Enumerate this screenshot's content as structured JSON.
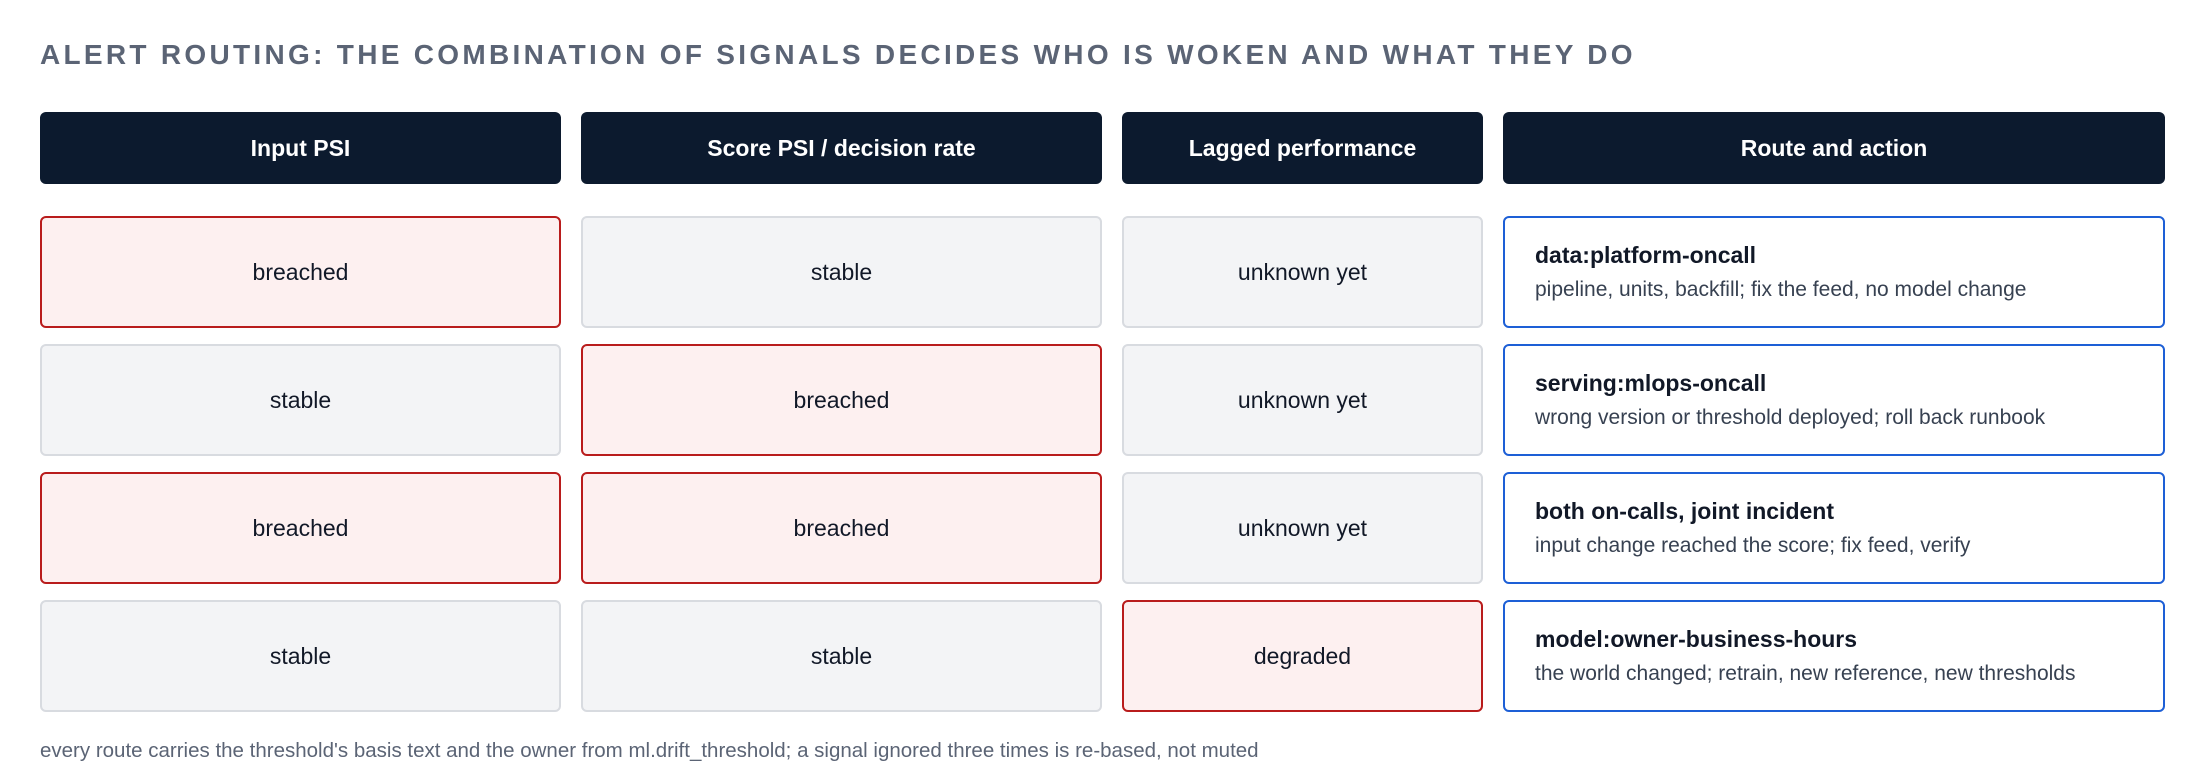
{
  "title": "ALERT ROUTING: THE COMBINATION OF SIGNALS DECIDES WHO IS WOKEN AND WHAT THEY DO",
  "columns": [
    "Input PSI",
    "Score PSI / decision rate",
    "Lagged performance",
    "Route and action"
  ],
  "rows": [
    {
      "input_psi": {
        "text": "breached",
        "state": "alert"
      },
      "score_psi": {
        "text": "stable",
        "state": "neutral"
      },
      "lagged": {
        "text": "unknown yet",
        "state": "neutral"
      },
      "route": {
        "title": "data:platform-oncall",
        "desc": "pipeline, units, backfill; fix the feed, no model change"
      }
    },
    {
      "input_psi": {
        "text": "stable",
        "state": "neutral"
      },
      "score_psi": {
        "text": "breached",
        "state": "alert"
      },
      "lagged": {
        "text": "unknown yet",
        "state": "neutral"
      },
      "route": {
        "title": "serving:mlops-oncall",
        "desc": "wrong version or threshold deployed; roll back runbook"
      }
    },
    {
      "input_psi": {
        "text": "breached",
        "state": "alert"
      },
      "score_psi": {
        "text": "breached",
        "state": "alert"
      },
      "lagged": {
        "text": "unknown yet",
        "state": "neutral"
      },
      "route": {
        "title": "both on-calls, joint incident",
        "desc": "input change reached the score; fix feed, verify"
      }
    },
    {
      "input_psi": {
        "text": "stable",
        "state": "neutral"
      },
      "score_psi": {
        "text": "stable",
        "state": "neutral"
      },
      "lagged": {
        "text": "degraded",
        "state": "alert"
      },
      "route": {
        "title": "model:owner-business-hours",
        "desc": "the world changed; retrain, new reference, new thresholds"
      }
    }
  ],
  "footnote": "every route carries the threshold's basis text and the owner from ml.drift_threshold; a signal ignored three times is re-based, not muted",
  "colors": {
    "header_bg": "#0c1a2e",
    "alert_border": "#b91c1c",
    "alert_bg": "#fdf0f0",
    "neutral_bg": "#f3f4f6",
    "route_border": "#1d5fd6"
  }
}
